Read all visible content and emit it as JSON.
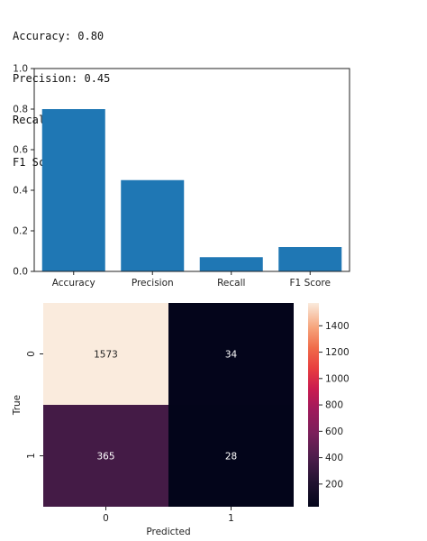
{
  "console_output": [
    "Accuracy: 0.80",
    "Precision: 0.45",
    "Recall: 0.07",
    "F1 Score: 0.12"
  ],
  "chart_data": [
    {
      "type": "bar",
      "categories": [
        "Accuracy",
        "Precision",
        "Recall",
        "F1 Score"
      ],
      "values": [
        0.8,
        0.45,
        0.07,
        0.12
      ],
      "ylim": [
        0,
        1.0
      ],
      "yticks": [
        "0.0",
        "0.2",
        "0.4",
        "0.6",
        "0.8",
        "1.0"
      ],
      "bar_color": "#1f77b4",
      "grid": false
    },
    {
      "type": "heatmap",
      "xlabel": "Predicted",
      "ylabel": "True",
      "x_categories": [
        "0",
        "1"
      ],
      "y_categories": [
        "0",
        "1"
      ],
      "matrix": [
        [
          1573,
          34
        ],
        [
          365,
          28
        ]
      ],
      "colormap": "rocket",
      "colorbar_ticks": [
        "200",
        "400",
        "600",
        "800",
        "1000",
        "1200",
        "1400"
      ],
      "colorbar_range": [
        28,
        1573
      ]
    }
  ]
}
